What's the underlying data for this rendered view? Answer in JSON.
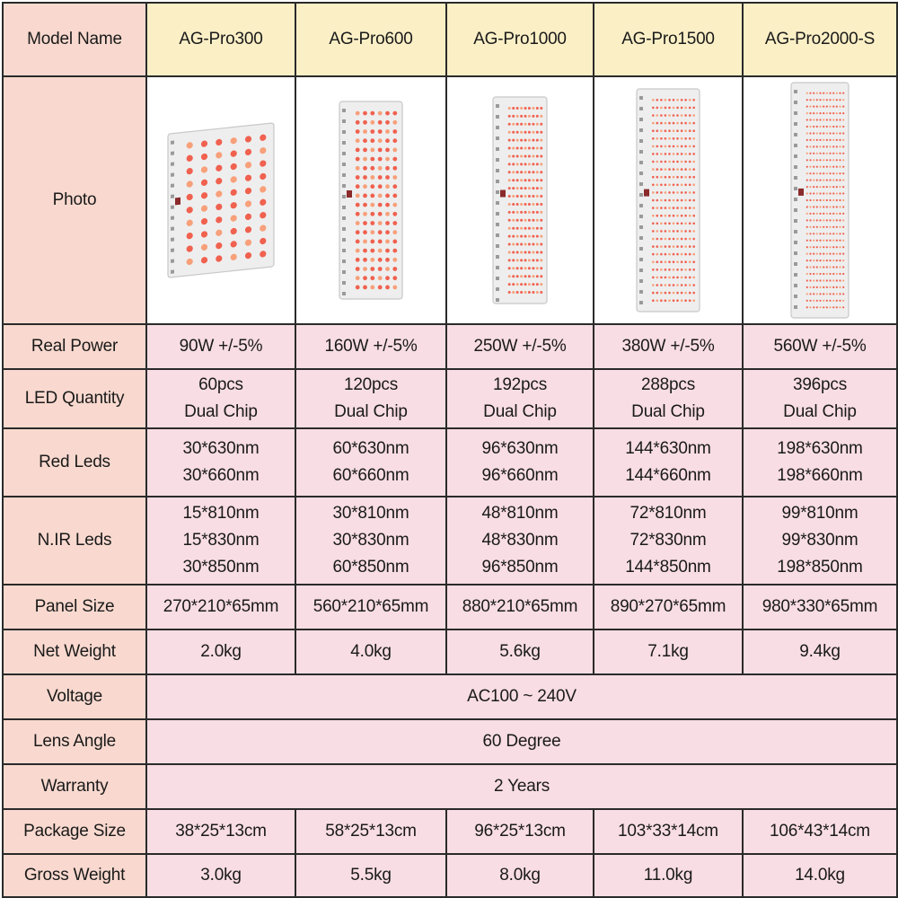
{
  "headers": {
    "model_name": "Model Name",
    "photo": "Photo",
    "real_power": "Real Power",
    "led_quantity": "LED Quantity",
    "red_leds": "Red Leds",
    "nir_leds": "N.IR Leds",
    "panel_size": "Panel Size",
    "net_weight": "Net Weight",
    "voltage": "Voltage",
    "lens_angle": "Lens Angle",
    "warranty": "Warranty",
    "package_size": "Package Size",
    "gross_weight": "Gross Weight"
  },
  "models": [
    {
      "name": "AG-Pro300",
      "real_power": "90W +/-5%",
      "led_quantity": [
        "60pcs",
        "Dual Chip"
      ],
      "red_leds": [
        "30*630nm",
        "30*660nm"
      ],
      "nir_leds": [
        "15*810nm",
        "15*830nm",
        "30*850nm"
      ],
      "panel_size": "270*210*65mm",
      "net_weight": "2.0kg",
      "package_size": "38*25*13cm",
      "gross_weight": "3.0kg",
      "photo_icon": "red-light-panel-with-stand-icon"
    },
    {
      "name": "AG-Pro600",
      "real_power": "160W +/-5%",
      "led_quantity": [
        "120pcs",
        "Dual Chip"
      ],
      "red_leds": [
        "60*630nm",
        "60*660nm"
      ],
      "nir_leds": [
        "30*810nm",
        "30*830nm",
        "60*850nm"
      ],
      "panel_size": "560*210*65mm",
      "net_weight": "4.0kg",
      "package_size": "58*25*13cm",
      "gross_weight": "5.5kg",
      "photo_icon": "red-light-panel-icon"
    },
    {
      "name": "AG-Pro1000",
      "real_power": "250W +/-5%",
      "led_quantity": [
        "192pcs",
        "Dual Chip"
      ],
      "red_leds": [
        "96*630nm",
        "96*660nm"
      ],
      "nir_leds": [
        "48*810nm",
        "48*830nm",
        "96*850nm"
      ],
      "panel_size": "880*210*65mm",
      "net_weight": "5.6kg",
      "package_size": "96*25*13cm",
      "gross_weight": "8.0kg",
      "photo_icon": "red-light-panel-icon"
    },
    {
      "name": "AG-Pro1500",
      "real_power": "380W +/-5%",
      "led_quantity": [
        "288pcs",
        "Dual Chip"
      ],
      "red_leds": [
        "144*630nm",
        "144*660nm"
      ],
      "nir_leds": [
        "72*810nm",
        "72*830nm",
        "144*850nm"
      ],
      "panel_size": "890*270*65mm",
      "net_weight": "7.1kg",
      "package_size": "103*33*14cm",
      "gross_weight": "11.0kg",
      "photo_icon": "red-light-panel-icon"
    },
    {
      "name": "AG-Pro2000-S",
      "real_power": "560W +/-5%",
      "led_quantity": [
        "396pcs",
        "Dual Chip"
      ],
      "red_leds": [
        "198*630nm",
        "198*660nm"
      ],
      "nir_leds": [
        "99*810nm",
        "99*830nm",
        "198*850nm"
      ],
      "panel_size": "980*330*65mm",
      "net_weight": "9.4kg",
      "package_size": "106*43*14cm",
      "gross_weight": "14.0kg",
      "photo_icon": "red-light-panel-icon"
    }
  ],
  "shared": {
    "voltage": "AC100 ~ 240V",
    "lens_angle": "60 Degree",
    "warranty": "2 Years"
  },
  "colors": {
    "label_bg": "#f9d9cf",
    "model_bg": "#fbefc6",
    "value_bg": "#f8dde4",
    "border": "#2a2a2a",
    "led_red": "#f0614f",
    "led_orange": "#f7a07a",
    "panel_body": "#eeeeee"
  }
}
